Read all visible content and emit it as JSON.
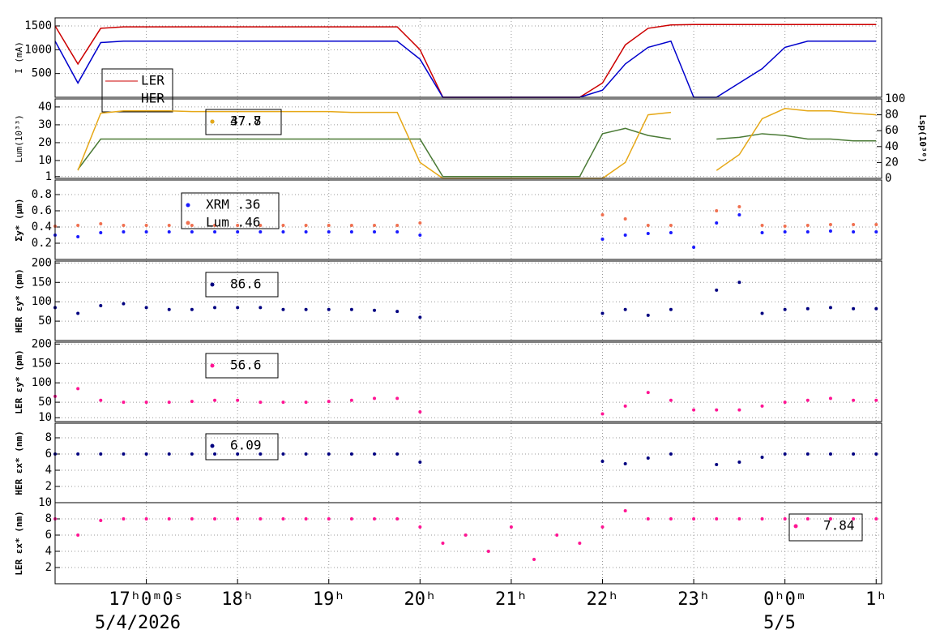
{
  "time_axis": {
    "xlim": [
      16.0,
      25.06
    ],
    "x": [
      16,
      16.25,
      16.5,
      16.75,
      17,
      17.25,
      17.5,
      17.75,
      18,
      18.25,
      18.5,
      18.75,
      19,
      19.25,
      19.5,
      19.75,
      20,
      20.25,
      20.5,
      20.75,
      21,
      21.25,
      21.5,
      21.75,
      22,
      22.25,
      22.5,
      22.75,
      23,
      23.25,
      23.5,
      23.75,
      24,
      24.25,
      24.5,
      24.75,
      25
    ],
    "xticks": [
      {
        "value": 17,
        "label": "17ʰ0ᵐ0ˢ"
      },
      {
        "value": 18,
        "label": "18ʰ"
      },
      {
        "value": 19,
        "label": "19ʰ"
      },
      {
        "value": 20,
        "label": "20ʰ"
      },
      {
        "value": 21,
        "label": "21ʰ"
      },
      {
        "value": 22,
        "label": "22ʰ"
      },
      {
        "value": 23,
        "label": "23ʰ"
      },
      {
        "value": 24,
        "label": "0ʰ0ᵐ"
      },
      {
        "value": 25,
        "label": "1ʰ"
      }
    ],
    "dates": [
      "5/4/2026",
      "5/5"
    ]
  },
  "chart_data": [
    {
      "type": "line",
      "ylabel": "I (mA)",
      "ylim": [
        0,
        1670
      ],
      "yticks": [
        500,
        1000,
        1500
      ],
      "grid": true,
      "series": [
        {
          "name": "LER",
          "color": "#cc0000",
          "values": [
            1500,
            700,
            1450,
            1480,
            1480,
            1480,
            1480,
            1480,
            1480,
            1480,
            1480,
            1480,
            1480,
            1480,
            1480,
            1480,
            1000,
            0,
            0,
            0,
            0,
            0,
            0,
            0,
            300,
            1100,
            1450,
            1520,
            1530,
            1530,
            1530,
            1530,
            1530,
            1530,
            1530,
            1530,
            1530
          ]
        },
        {
          "name": "HER",
          "color": "#0000cc",
          "values": [
            1180,
            300,
            1150,
            1180,
            1180,
            1180,
            1180,
            1180,
            1180,
            1180,
            1180,
            1180,
            1180,
            1180,
            1180,
            1180,
            800,
            0,
            0,
            0,
            0,
            0,
            0,
            0,
            150,
            700,
            1050,
            1180,
            0,
            0,
            300,
            600,
            1050,
            1180,
            1180,
            1180,
            1180
          ]
        }
      ]
    },
    {
      "type": "line",
      "ylabel": "Lum(10³³)",
      "y2label": "Lsp(10³⁰)",
      "ylim": [
        0,
        44.5
      ],
      "yticks": [
        1,
        10,
        20,
        30,
        40
      ],
      "y2lim": [
        0,
        100
      ],
      "y2ticks": [
        0,
        20,
        40,
        60,
        80,
        100
      ],
      "grid": true,
      "series": [
        {
          "name": "37.8",
          "color": "#4a7a35",
          "values": [
            null,
            5,
            22,
            22,
            22,
            22,
            22,
            22,
            22,
            22,
            22,
            22,
            22,
            22,
            22,
            22,
            22,
            1,
            1,
            1,
            1,
            1,
            1,
            1,
            25,
            28,
            24,
            22,
            null,
            22,
            23,
            25,
            24,
            22,
            22,
            21,
            21
          ]
        },
        {
          "name": "47.7",
          "color": "#e6a817",
          "axis": "y2",
          "values": [
            null,
            10,
            82,
            85,
            85,
            85,
            84,
            84,
            84,
            84,
            84,
            84,
            84,
            83,
            83,
            83,
            20,
            0,
            0,
            0,
            0,
            0,
            0,
            0,
            0,
            20,
            80,
            83,
            null,
            10,
            30,
            75,
            88,
            85,
            85,
            82,
            80
          ]
        }
      ]
    },
    {
      "type": "scatter",
      "ylabel": "Σy* (μm)",
      "ylim": [
        0,
        0.98
      ],
      "yticks": [
        0.2,
        0.4,
        0.6,
        0.8
      ],
      "grid": true,
      "series": [
        {
          "name": "XRM  .36",
          "color": "#1a1aff",
          "values": [
            0.3,
            0.28,
            0.33,
            0.34,
            0.34,
            0.34,
            0.34,
            0.34,
            0.34,
            0.34,
            0.34,
            0.34,
            0.34,
            0.34,
            0.34,
            0.34,
            0.3,
            null,
            null,
            null,
            null,
            null,
            null,
            null,
            0.25,
            0.3,
            0.32,
            0.33,
            0.15,
            0.45,
            0.55,
            0.33,
            0.34,
            0.34,
            0.35,
            0.34,
            0.34
          ]
        },
        {
          "name": "Lum  .46",
          "color": "#f07050",
          "values": [
            0.41,
            0.42,
            0.44,
            0.42,
            0.42,
            0.42,
            0.42,
            0.42,
            0.42,
            0.42,
            0.42,
            0.42,
            0.42,
            0.42,
            0.42,
            0.42,
            0.45,
            null,
            null,
            null,
            null,
            null,
            null,
            null,
            0.55,
            0.5,
            0.42,
            0.42,
            null,
            0.6,
            0.65,
            0.42,
            0.41,
            0.42,
            0.43,
            0.43,
            0.43
          ]
        }
      ]
    },
    {
      "type": "scatter",
      "ylabel": "HER εy* (pm)",
      "ylim": [
        0,
        205
      ],
      "yticks": [
        50,
        100,
        150,
        200
      ],
      "grid": true,
      "series": [
        {
          "name": "86.6",
          "color": "#000080",
          "values": [
            85,
            70,
            90,
            95,
            85,
            80,
            80,
            85,
            85,
            85,
            80,
            80,
            80,
            80,
            78,
            75,
            60,
            null,
            null,
            null,
            null,
            null,
            null,
            null,
            70,
            80,
            65,
            80,
            null,
            130,
            150,
            70,
            80,
            82,
            85,
            82,
            82
          ]
        }
      ]
    },
    {
      "type": "scatter",
      "ylabel": "LER εy* (pm)",
      "ylim": [
        0,
        205
      ],
      "yticks": [
        10,
        50,
        100,
        150,
        200
      ],
      "grid": true,
      "series": [
        {
          "name": "56.6",
          "color": "#ff1493",
          "values": [
            65,
            85,
            55,
            50,
            50,
            50,
            52,
            55,
            55,
            50,
            50,
            50,
            52,
            55,
            60,
            60,
            25,
            null,
            null,
            null,
            null,
            null,
            null,
            null,
            20,
            40,
            75,
            55,
            30,
            30,
            30,
            40,
            50,
            55,
            60,
            55,
            55
          ]
        }
      ]
    },
    {
      "type": "scatter",
      "ylabel": "HER εx* (nm)",
      "ylim": [
        0,
        9.8
      ],
      "yticks": [
        2,
        4,
        6,
        8
      ],
      "grid": true,
      "series": [
        {
          "name": "6.09",
          "color": "#000080",
          "values": [
            6,
            6,
            6,
            6,
            6,
            6,
            6,
            6,
            6,
            6,
            6,
            6,
            6,
            6,
            6,
            6,
            5,
            null,
            null,
            null,
            null,
            null,
            null,
            null,
            5.1,
            4.8,
            5.5,
            6,
            null,
            4.7,
            5,
            5.6,
            6,
            6,
            6,
            6,
            6
          ]
        }
      ]
    },
    {
      "type": "scatter",
      "ylabel": "LER εx* (nm)",
      "ylim": [
        0,
        10
      ],
      "yticks": [
        2,
        4,
        6,
        8,
        10
      ],
      "grid": true,
      "series": [
        {
          "name": "7.84",
          "color": "#ff1493",
          "values": [
            8,
            6,
            7.8,
            8,
            8,
            8,
            8,
            8,
            8,
            8,
            8,
            8,
            8,
            8,
            8,
            8,
            7,
            5,
            6,
            4,
            7,
            3,
            6,
            5,
            7,
            9,
            8,
            8,
            8,
            8,
            8,
            8,
            8,
            8,
            8,
            8,
            8
          ]
        }
      ]
    }
  ]
}
